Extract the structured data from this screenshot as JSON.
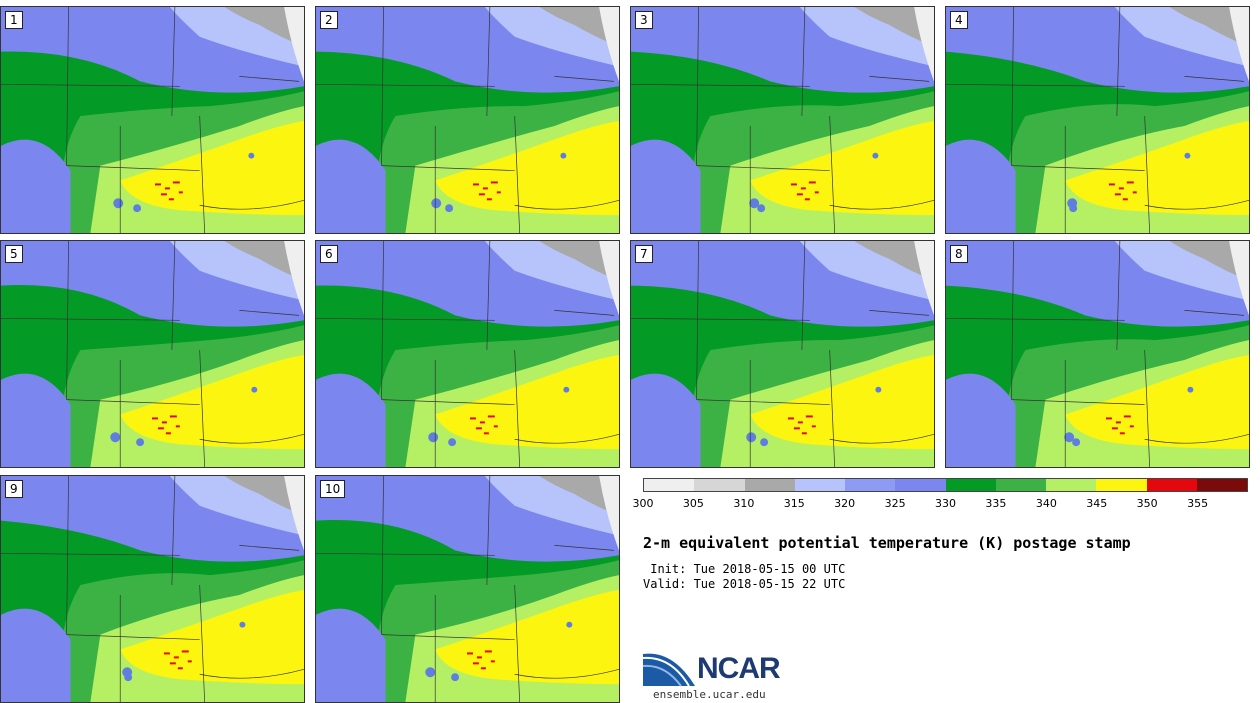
{
  "stamps": [
    "1",
    "2",
    "3",
    "4",
    "5",
    "6",
    "7",
    "8",
    "9",
    "10"
  ],
  "colorbar": {
    "colors": [
      "#efefef",
      "#d6d6d6",
      "#a9a9a9",
      "#b7c3fb",
      "#8e9bf4",
      "#7b86ee",
      "#049a26",
      "#3cb244",
      "#b5f064",
      "#fbf50f",
      "#e4070e",
      "#7b0a0a"
    ],
    "ticks": [
      "300",
      "305",
      "310",
      "315",
      "320",
      "325",
      "330",
      "335",
      "340",
      "345",
      "350",
      "355"
    ]
  },
  "title": "2-m equivalent potential temperature (K) postage stamp",
  "init": " Init: Tue 2018-05-15 00 UTC",
  "valid": "Valid: Tue 2018-05-15 22 UTC",
  "logo": {
    "name": "NCAR",
    "url": "ensemble.ucar.edu"
  }
}
